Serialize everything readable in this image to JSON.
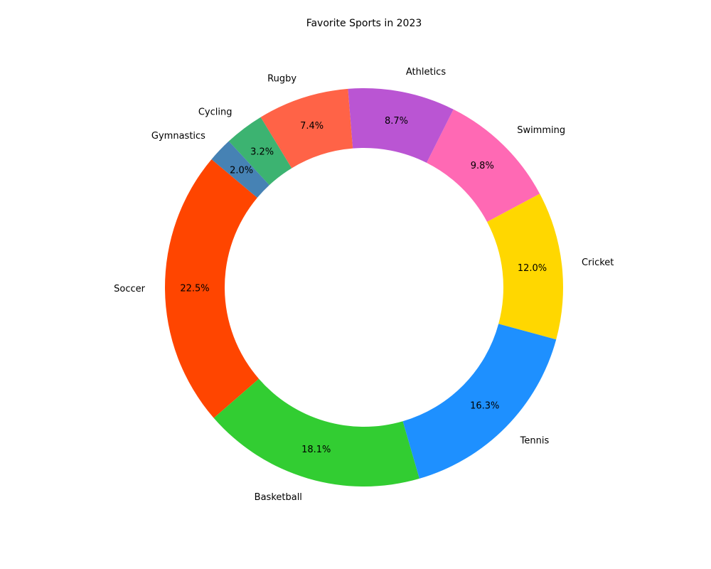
{
  "chart_data": {
    "type": "pie",
    "variant": "donut",
    "title": "Favorite Sports in 2023",
    "start_angle_deg": 140,
    "direction": "counterclockwise",
    "categories": [
      "Soccer",
      "Basketball",
      "Tennis",
      "Cricket",
      "Swimming",
      "Athletics",
      "Rugby",
      "Cycling",
      "Gymnastics"
    ],
    "values": [
      22.5,
      18.1,
      16.3,
      12.0,
      9.8,
      8.7,
      7.4,
      3.2,
      2.0
    ],
    "value_labels": [
      "22.5%",
      "18.1%",
      "16.3%",
      "12.0%",
      "9.8%",
      "8.7%",
      "7.4%",
      "3.2%",
      "2.0%"
    ],
    "colors": [
      "#ff4500",
      "#32cd32",
      "#1e90ff",
      "#ffd700",
      "#ff69b4",
      "#ba55d3",
      "#ff6347",
      "#3cb371",
      "#4682b4"
    ],
    "legend": "none"
  }
}
